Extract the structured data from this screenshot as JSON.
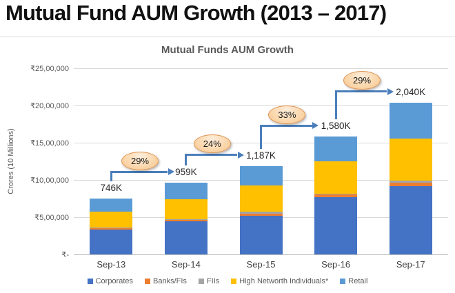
{
  "page": {
    "title": "Mutual Fund AUM Growth (2013 – 2017)"
  },
  "chart": {
    "title": "Mutual Funds AUM Growth",
    "y_axis_title": "Crores (10 Millions)"
  },
  "chart_data": {
    "type": "bar",
    "stacked": true,
    "title": "Mutual Funds AUM Growth",
    "xlabel": "",
    "ylabel": "Crores (10 Millions)",
    "unit": "thousand crores (K)",
    "categories": [
      "Sep-13",
      "Sep-14",
      "Sep-15",
      "Sep-16",
      "Sep-17"
    ],
    "series": [
      {
        "name": "Corporates",
        "color": "#4472C4",
        "values": [
          330,
          440,
          521,
          770,
          915
        ]
      },
      {
        "name": "Banks/FIs",
        "color": "#ED7D31",
        "values": [
          25,
          27,
          28,
          32,
          45
        ]
      },
      {
        "name": "FIIs",
        "color": "#A5A5A5",
        "values": [
          6,
          7,
          28,
          14,
          28
        ]
      },
      {
        "name": "High Networth Individuals*",
        "color": "#FFC000",
        "values": [
          215,
          270,
          350,
          430,
          570
        ]
      },
      {
        "name": "Retail",
        "color": "#5B9BD5",
        "values": [
          170,
          215,
          260,
          334,
          482
        ]
      }
    ],
    "totals": [
      746,
      959,
      1187,
      1580,
      2040
    ],
    "total_labels": [
      "746K",
      "959K",
      "1,187K",
      "1,580K",
      "2,040K"
    ],
    "growth_labels": [
      "29%",
      "24%",
      "33%",
      "29%"
    ],
    "y_ticks": [
      {
        "label": "₹25,00,000",
        "value": 2500
      },
      {
        "label": "₹20,00,000",
        "value": 2000
      },
      {
        "label": "₹15,00,000",
        "value": 1500
      },
      {
        "label": "₹10,00,000",
        "value": 1000
      },
      {
        "label": "₹5,00,000",
        "value": 500
      },
      {
        "label": "₹-",
        "value": 0
      }
    ],
    "ylim": [
      0,
      2500
    ],
    "grid": true,
    "legend_position": "bottom",
    "arrow_color": "#4a7ebb",
    "callout_fill": "#FBD8AE",
    "callout_border": "#DE9554"
  }
}
